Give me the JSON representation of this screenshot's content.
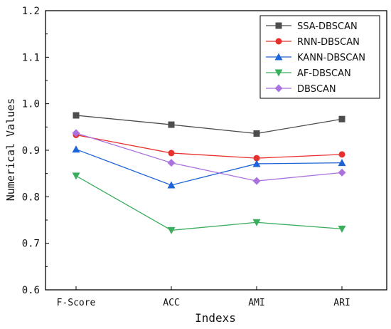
{
  "chart_data": {
    "type": "line",
    "xlabel": "Indexs",
    "ylabel": "Numerical Values",
    "categories": [
      "F-Score",
      "ACC",
      "AMI",
      "ARI"
    ],
    "ylim": [
      0.6,
      1.2
    ],
    "yticks": [
      "0.6",
      "0.7",
      "0.8",
      "0.9",
      "1.0",
      "1.1",
      "1.2"
    ],
    "grid": false,
    "legend_position": "top-right",
    "series": [
      {
        "name": "SSA-DBSCAN",
        "values": [
          0.975,
          0.955,
          0.936,
          0.967
        ],
        "color": "#4d4d4d",
        "marker": "square"
      },
      {
        "name": "RNN-DBSCAN",
        "values": [
          0.933,
          0.894,
          0.883,
          0.891
        ],
        "color": "#e8302e",
        "marker": "circle"
      },
      {
        "name": "KANN-DBSCAN",
        "values": [
          0.902,
          0.825,
          0.871,
          0.873
        ],
        "color": "#1f64d6",
        "marker": "triangle-up"
      },
      {
        "name": "AF-DBSCAN",
        "values": [
          0.845,
          0.728,
          0.745,
          0.731
        ],
        "color": "#3bae5e",
        "marker": "triangle-down"
      },
      {
        "name": "DBSCAN",
        "values": [
          0.937,
          0.873,
          0.834,
          0.852
        ],
        "color": "#a972de",
        "marker": "diamond"
      }
    ]
  }
}
